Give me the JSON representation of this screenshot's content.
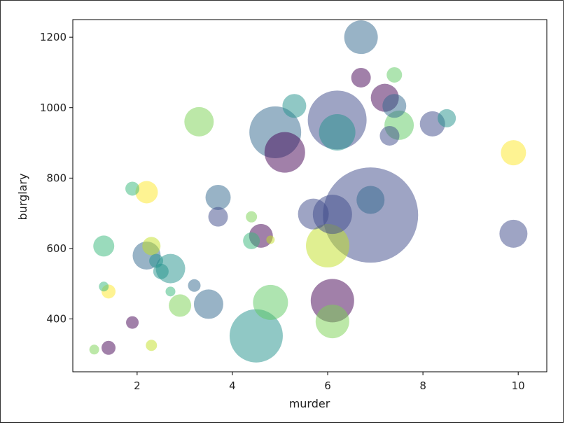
{
  "chart_data": {
    "type": "scatter",
    "title": "",
    "xlabel": "murder",
    "ylabel": "burglary",
    "xlim": [
      0.65,
      10.6
    ],
    "ylim": [
      250,
      1250
    ],
    "xticks": [
      2,
      4,
      6,
      8,
      10
    ],
    "yticks": [
      400,
      600,
      800,
      1000,
      1200
    ],
    "grid": false,
    "colormap": "viridis",
    "alpha": 0.5,
    "points": [
      {
        "x": 6.9,
        "y": 695,
        "size": 68,
        "color": "#3e4a89"
      },
      {
        "x": 6.2,
        "y": 965,
        "size": 42,
        "color": "#3e4a89"
      },
      {
        "x": 4.5,
        "y": 352,
        "size": 38,
        "color": "#21918c"
      },
      {
        "x": 4.9,
        "y": 930,
        "size": 37,
        "color": "#31688e"
      },
      {
        "x": 6.0,
        "y": 608,
        "size": 31,
        "color": "#c2df23"
      },
      {
        "x": 6.1,
        "y": 452,
        "size": 31,
        "color": "#440154"
      },
      {
        "x": 5.1,
        "y": 873,
        "size": 29,
        "color": "#440154"
      },
      {
        "x": 6.1,
        "y": 697,
        "size": 28,
        "color": "#3e4a89"
      },
      {
        "x": 6.2,
        "y": 930,
        "size": 26,
        "color": "#21918c"
      },
      {
        "x": 4.8,
        "y": 447,
        "size": 25,
        "color": "#5ec962"
      },
      {
        "x": 6.7,
        "y": 1200,
        "size": 24,
        "color": "#31688e"
      },
      {
        "x": 6.1,
        "y": 393,
        "size": 24,
        "color": "#7ad151"
      },
      {
        "x": 5.7,
        "y": 698,
        "size": 22,
        "color": "#3e4a89"
      },
      {
        "x": 2.7,
        "y": 543,
        "size": 21,
        "color": "#21918c"
      },
      {
        "x": 3.5,
        "y": 442,
        "size": 21,
        "color": "#31688e"
      },
      {
        "x": 7.5,
        "y": 950,
        "size": 21,
        "color": "#5ec962"
      },
      {
        "x": 3.3,
        "y": 960,
        "size": 21,
        "color": "#7ad151"
      },
      {
        "x": 2.2,
        "y": 580,
        "size": 20,
        "color": "#31688e"
      },
      {
        "x": 7.2,
        "y": 1028,
        "size": 20,
        "color": "#440154"
      },
      {
        "x": 6.9,
        "y": 738,
        "size": 20,
        "color": "#31688e"
      },
      {
        "x": 9.9,
        "y": 642,
        "size": 20,
        "color": "#3e4a89"
      },
      {
        "x": 8.2,
        "y": 954,
        "size": 18,
        "color": "#3e4a89"
      },
      {
        "x": 3.7,
        "y": 745,
        "size": 18,
        "color": "#31688e"
      },
      {
        "x": 9.9,
        "y": 872,
        "size": 18,
        "color": "#fde725"
      },
      {
        "x": 4.6,
        "y": 636,
        "size": 17,
        "color": "#440154"
      },
      {
        "x": 5.3,
        "y": 1005,
        "size": 17,
        "color": "#21918c"
      },
      {
        "x": 7.4,
        "y": 1005,
        "size": 17,
        "color": "#31688e"
      },
      {
        "x": 2.9,
        "y": 438,
        "size": 16,
        "color": "#7ad151"
      },
      {
        "x": 2.2,
        "y": 760,
        "size": 16,
        "color": "#fde725"
      },
      {
        "x": 1.3,
        "y": 607,
        "size": 15,
        "color": "#35b779"
      },
      {
        "x": 3.7,
        "y": 690,
        "size": 14,
        "color": "#3e4a89"
      },
      {
        "x": 7.3,
        "y": 920,
        "size": 14,
        "color": "#3e4a89"
      },
      {
        "x": 6.7,
        "y": 1085,
        "size": 14,
        "color": "#440154"
      },
      {
        "x": 2.3,
        "y": 607,
        "size": 13,
        "color": "#c2df23"
      },
      {
        "x": 8.5,
        "y": 970,
        "size": 13,
        "color": "#21918c"
      },
      {
        "x": 4.4,
        "y": 622,
        "size": 12,
        "color": "#35b779"
      },
      {
        "x": 2.5,
        "y": 535,
        "size": 11,
        "color": "#21918c"
      },
      {
        "x": 7.4,
        "y": 1093,
        "size": 11,
        "color": "#5ec962"
      },
      {
        "x": 2.4,
        "y": 565,
        "size": 10,
        "color": "#21918c"
      },
      {
        "x": 1.9,
        "y": 770,
        "size": 10,
        "color": "#35b779"
      },
      {
        "x": 1.4,
        "y": 318,
        "size": 10,
        "color": "#440154"
      },
      {
        "x": 3.2,
        "y": 495,
        "size": 9,
        "color": "#31688e"
      },
      {
        "x": 1.4,
        "y": 478,
        "size": 10,
        "color": "#fde725"
      },
      {
        "x": 1.9,
        "y": 390,
        "size": 9,
        "color": "#440154"
      },
      {
        "x": 2.3,
        "y": 325,
        "size": 8,
        "color": "#c2df23"
      },
      {
        "x": 4.4,
        "y": 690,
        "size": 8,
        "color": "#7ad151"
      },
      {
        "x": 1.3,
        "y": 492,
        "size": 7,
        "color": "#35b779"
      },
      {
        "x": 1.1,
        "y": 313,
        "size": 7,
        "color": "#7ad151"
      },
      {
        "x": 2.7,
        "y": 478,
        "size": 7,
        "color": "#35b779"
      },
      {
        "x": 4.8,
        "y": 625,
        "size": 6,
        "color": "#c2df23"
      }
    ]
  }
}
